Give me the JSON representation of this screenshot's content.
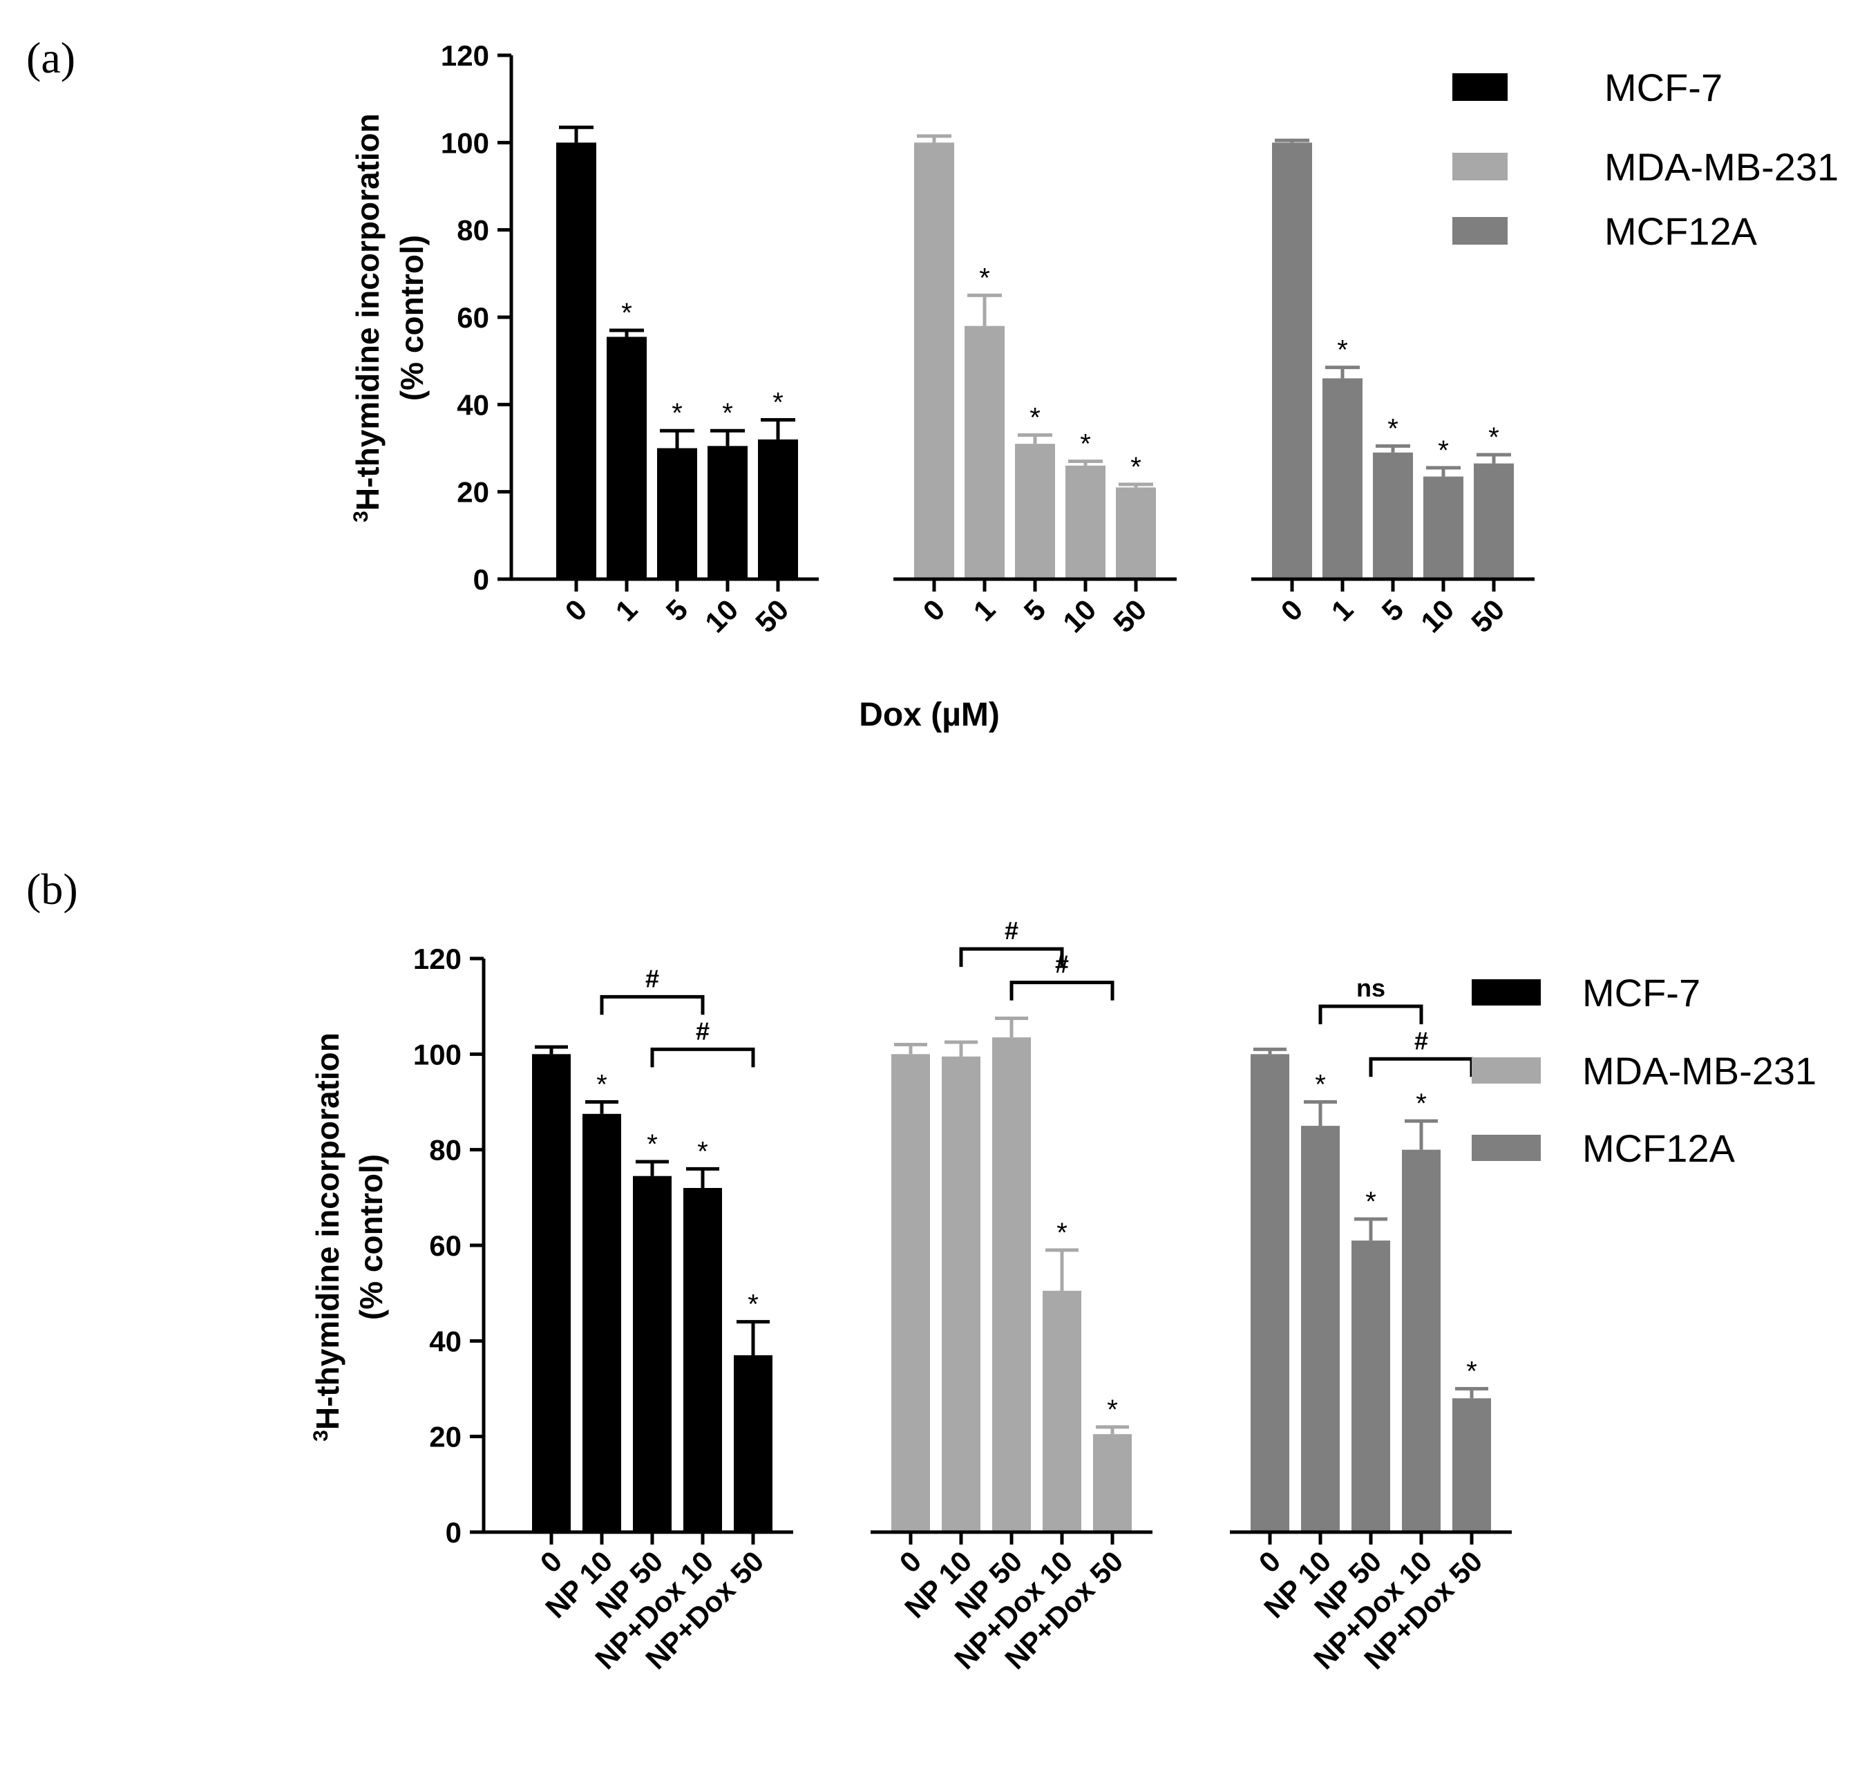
{
  "chart_data": [
    {
      "type": "bar",
      "panel_label": "(a)",
      "ylabel": "H-thymidine incorporation",
      "ylabel_sup": "3",
      "ylabel2": "(% control)",
      "xlabel": "Dox (µM)",
      "ylim": [
        0,
        120
      ],
      "yticks": [
        0,
        20,
        40,
        60,
        80,
        100,
        120
      ],
      "legend": [
        "MCF-7",
        "MDA-MB-231",
        "MCF12A"
      ],
      "colors": [
        "#000000",
        "#a8a8a8",
        "#7f7f7f"
      ],
      "categories": [
        "0",
        "1",
        "5",
        "10",
        "50"
      ],
      "series": [
        {
          "name": "MCF-7",
          "values": [
            100,
            55.5,
            30,
            30.5,
            32
          ],
          "errors": [
            3.5,
            1.5,
            4,
            3.5,
            4.5
          ],
          "sig": [
            "",
            "*",
            "*",
            "*",
            "*"
          ]
        },
        {
          "name": "MDA-MB-231",
          "values": [
            100,
            58,
            31,
            26,
            21
          ],
          "errors": [
            1.5,
            7,
            2,
            1,
            0.7
          ],
          "sig": [
            "",
            "*",
            "*",
            "*",
            "*"
          ]
        },
        {
          "name": "MCF12A",
          "values": [
            100,
            46,
            29,
            23.5,
            26.5
          ],
          "errors": [
            0.5,
            2.5,
            1.5,
            2,
            2
          ],
          "sig": [
            "",
            "*",
            "*",
            "*",
            "*"
          ]
        }
      ],
      "brackets": []
    },
    {
      "type": "bar",
      "panel_label": "(b)",
      "ylabel": "H-thymidine incorporation",
      "ylabel_sup": "3",
      "ylabel2": "(% control)",
      "xlabel": "",
      "ylim": [
        0,
        120
      ],
      "yticks": [
        0,
        20,
        40,
        60,
        80,
        100,
        120
      ],
      "legend": [
        "MCF-7",
        "MDA-MB-231",
        "MCF12A"
      ],
      "colors": [
        "#000000",
        "#a8a8a8",
        "#7f7f7f"
      ],
      "categories": [
        "0",
        "NP 10",
        "NP 50",
        "NP+Dox 10",
        "NP+Dox 50"
      ],
      "series": [
        {
          "name": "MCF-7",
          "values": [
            100,
            87.5,
            74.5,
            72,
            37
          ],
          "errors": [
            1.5,
            2.5,
            3,
            4,
            7
          ],
          "sig": [
            "",
            "*",
            "*",
            "*",
            "*"
          ]
        },
        {
          "name": "MDA-MB-231",
          "values": [
            100,
            99.5,
            103.5,
            50.5,
            20.5
          ],
          "errors": [
            2,
            3,
            4,
            8.5,
            1.5
          ],
          "sig": [
            "",
            "",
            "",
            "*",
            "*"
          ]
        },
        {
          "name": "MCF12A",
          "values": [
            100,
            85,
            61,
            80,
            28
          ],
          "errors": [
            1,
            5,
            4.5,
            6,
            2
          ],
          "sig": [
            "",
            "*",
            "*",
            "*",
            "*"
          ]
        }
      ],
      "brackets": [
        {
          "group": 0,
          "from": 1,
          "to": 3,
          "y": 112,
          "label": "#"
        },
        {
          "group": 0,
          "from": 2,
          "to": 4,
          "y": 101,
          "label": "#"
        },
        {
          "group": 1,
          "from": 1,
          "to": 3,
          "y": 122,
          "label": "#"
        },
        {
          "group": 1,
          "from": 2,
          "to": 4,
          "y": 115,
          "label": "#"
        },
        {
          "group": 2,
          "from": 1,
          "to": 3,
          "y": 110,
          "label": "ns"
        },
        {
          "group": 2,
          "from": 2,
          "to": 4,
          "y": 99,
          "label": "#"
        }
      ]
    }
  ]
}
